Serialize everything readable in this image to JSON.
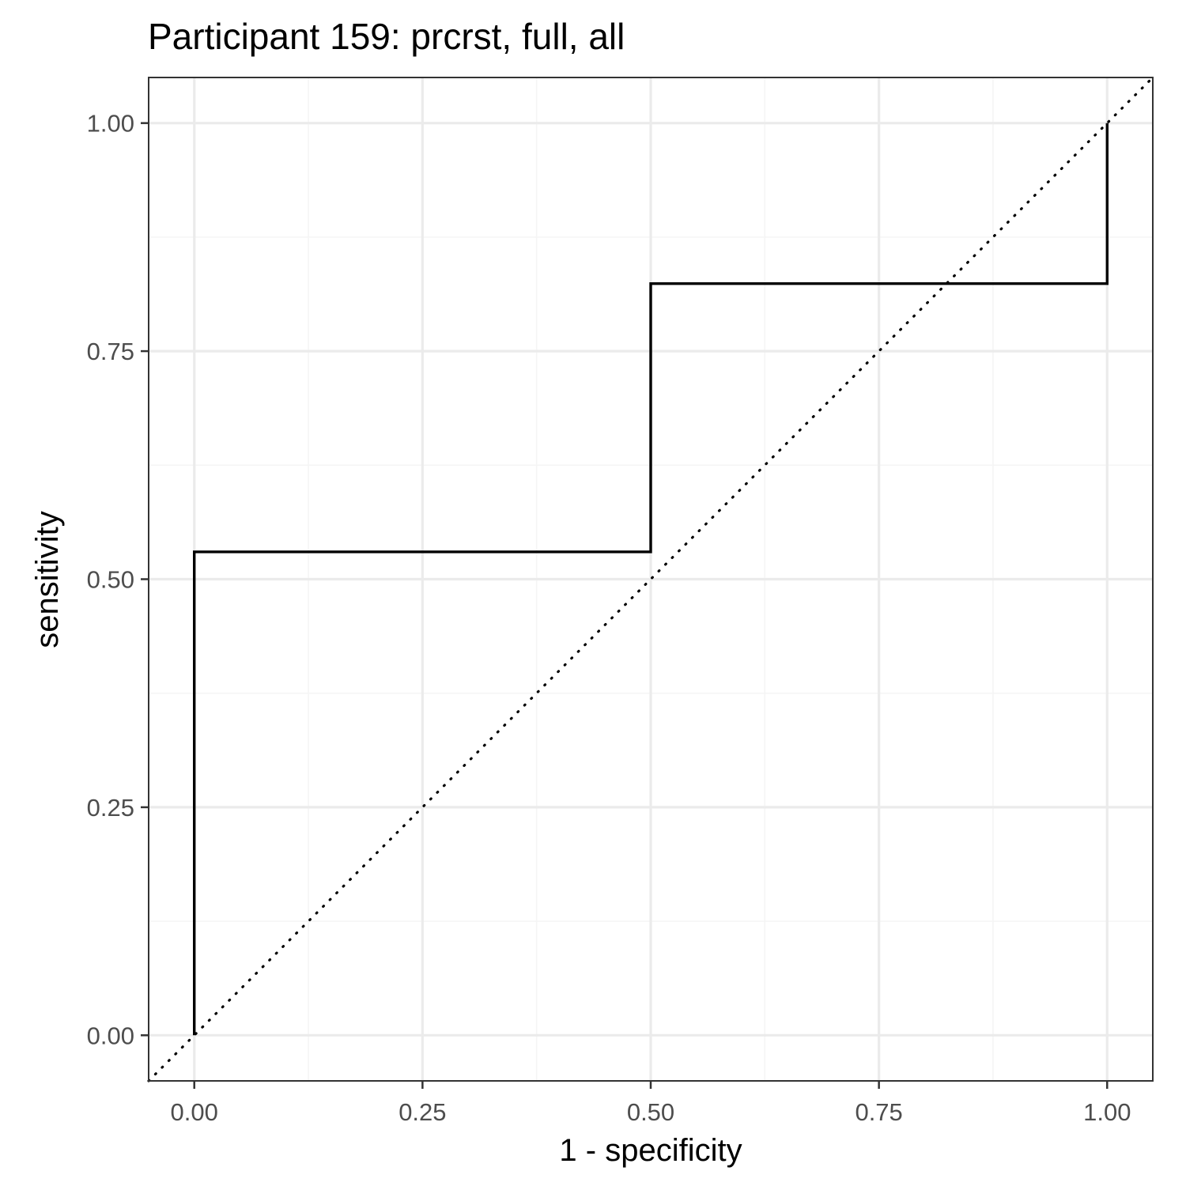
{
  "chart_data": {
    "type": "line",
    "title": "Participant 159: prcrst, full, all",
    "xlabel": "1 - specificity",
    "ylabel": "sensitivity",
    "xlim": [
      -0.05,
      1.05
    ],
    "ylim": [
      -0.05,
      1.05
    ],
    "x_ticks": [
      {
        "value": 0.0,
        "label": "0.00"
      },
      {
        "value": 0.25,
        "label": "0.25"
      },
      {
        "value": 0.5,
        "label": "0.50"
      },
      {
        "value": 0.75,
        "label": "0.75"
      },
      {
        "value": 1.0,
        "label": "1.00"
      }
    ],
    "y_ticks": [
      {
        "value": 0.0,
        "label": "0.00"
      },
      {
        "value": 0.25,
        "label": "0.25"
      },
      {
        "value": 0.5,
        "label": "0.50"
      },
      {
        "value": 0.75,
        "label": "0.75"
      },
      {
        "value": 1.0,
        "label": "1.00"
      }
    ],
    "minor_breaks": [
      0.125,
      0.375,
      0.625,
      0.875
    ],
    "grid": true,
    "series": [
      {
        "style": "step",
        "color": "#000000",
        "points": [
          {
            "x": 0.0,
            "y": 0.0
          },
          {
            "x": 0.0,
            "y": 0.53
          },
          {
            "x": 0.5,
            "y": 0.53
          },
          {
            "x": 0.5,
            "y": 0.824
          },
          {
            "x": 1.0,
            "y": 0.824
          },
          {
            "x": 1.0,
            "y": 1.0
          }
        ]
      }
    ],
    "reference_line": {
      "style": "dotted",
      "color": "#000000",
      "from": [
        -0.05,
        -0.05
      ],
      "to": [
        1.05,
        1.05
      ]
    },
    "colors": {
      "panel_border": "#333333",
      "grid_major": "#ebebeb",
      "grid_minor": "#f5f5f5",
      "tick_text": "#4d4d4d"
    }
  }
}
